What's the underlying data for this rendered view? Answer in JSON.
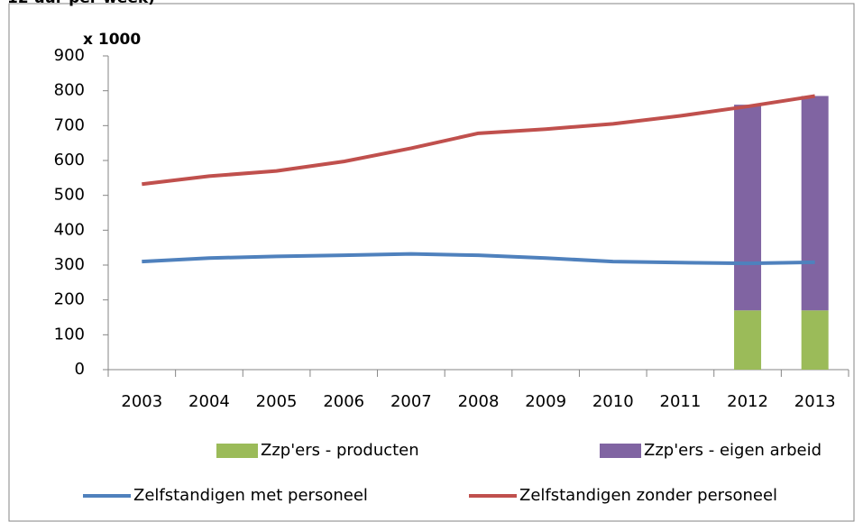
{
  "chart_data": {
    "type": "bar",
    "title": "12 uur per week)",
    "y_label": "x 1000",
    "categories": [
      "2003",
      "2004",
      "2005",
      "2006",
      "2007",
      "2008",
      "2009",
      "2010",
      "2011",
      "2012",
      "2013"
    ],
    "series": [
      {
        "name": "Zzp'ers - producten",
        "type": "bar",
        "color": "#9bbb59",
        "values": [
          null,
          null,
          null,
          null,
          null,
          null,
          null,
          null,
          null,
          170,
          170
        ]
      },
      {
        "name": "Zzp'ers - eigen arbeid",
        "type": "bar",
        "color": "#8064a2",
        "values": [
          null,
          null,
          null,
          null,
          null,
          null,
          null,
          null,
          null,
          590,
          615
        ]
      },
      {
        "name": "Zelfstandigen met personeel",
        "type": "line",
        "color": "#4f81bd",
        "values": [
          310,
          320,
          325,
          328,
          332,
          328,
          320,
          310,
          307,
          305,
          308
        ]
      },
      {
        "name": "Zelfstandigen zonder personeel",
        "type": "line",
        "color": "#c0504d",
        "values": [
          532,
          555,
          570,
          597,
          635,
          678,
          690,
          705,
          728,
          755,
          785
        ]
      }
    ],
    "ylim": [
      0,
      900
    ],
    "yticks": [
      0,
      100,
      200,
      300,
      400,
      500,
      600,
      700,
      800,
      900
    ],
    "stacked": true,
    "grid": false
  }
}
